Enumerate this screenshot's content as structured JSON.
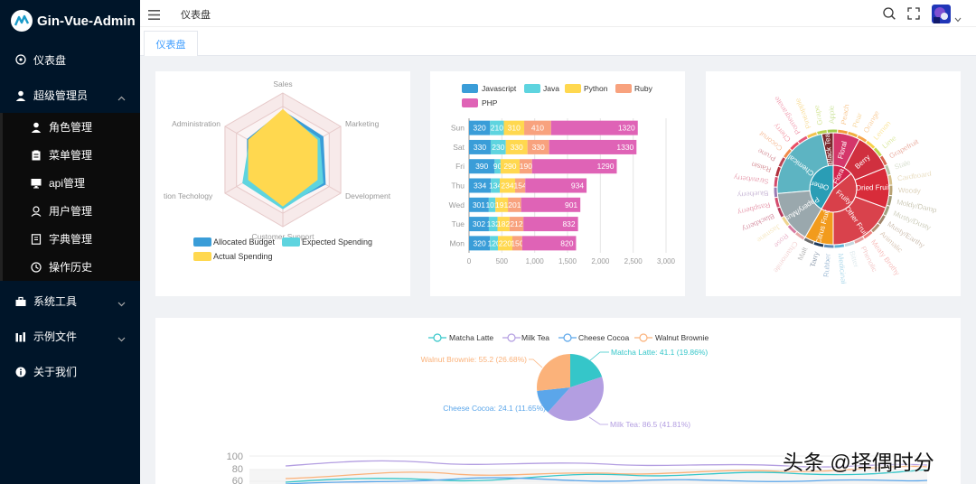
{
  "app": {
    "title": "Gin-Vue-Admin"
  },
  "menu": {
    "dashboard": "仪表盘",
    "admin": "超级管理员",
    "admin_items": [
      "角色管理",
      "菜单管理",
      "api管理",
      "用户管理",
      "字典管理",
      "操作历史"
    ],
    "tools": "系统工具",
    "examples": "示例文件",
    "about": "关于我们"
  },
  "header": {
    "breadcrumb": "仪表盘"
  },
  "tabs": [
    "仪表盘"
  ],
  "watermark": "头条 @择偶时分",
  "colors": {
    "sidebar": "#001529",
    "accent": "#409eff"
  },
  "chart_data": [
    {
      "type": "radar",
      "indicators": [
        "Sales",
        "Marketing",
        "Development",
        "Customer Support",
        "tion Techology",
        "Administration"
      ],
      "series": [
        {
          "name": "Allocated Budget",
          "color": "#3a9dd8"
        },
        {
          "name": "Expected Spending",
          "color": "#5ed4df"
        },
        {
          "name": "Actual Spending",
          "color": "#ffd84f"
        }
      ]
    },
    {
      "type": "bar",
      "orientation": "horizontal-stacked",
      "categories": [
        "Mon",
        "Tue",
        "Wed",
        "Thu",
        "Fri",
        "Sat",
        "Sun"
      ],
      "series": [
        {
          "name": "Javascript",
          "color": "#3a9dd8",
          "values": [
            320,
            302,
            301,
            334,
            390,
            330,
            320
          ]
        },
        {
          "name": "Java",
          "color": "#5ed4df",
          "values": [
            120,
            132,
            101,
            134,
            90,
            230,
            210
          ]
        },
        {
          "name": "Python",
          "color": "#ffd84f",
          "values": [
            220,
            182,
            191,
            234,
            290,
            330,
            310
          ]
        },
        {
          "name": "Ruby",
          "color": "#f8a27e",
          "values": [
            150,
            212,
            201,
            154,
            190,
            330,
            410
          ]
        },
        {
          "name": "PHP",
          "color": "#df63b6",
          "values": [
            820,
            832,
            901,
            934,
            1290,
            1330,
            1320
          ]
        }
      ],
      "xticks": [
        "0",
        "500",
        "1,000",
        "1,500",
        "2,000",
        "2,500",
        "3,000"
      ],
      "xlim": [
        0,
        3000
      ]
    },
    {
      "type": "sunburst",
      "inner": [
        "Other",
        "Flora",
        "Fruity"
      ],
      "middle": [
        "Black Tea",
        "Floral",
        "Chemical",
        "Papery/Musty",
        "Citrus Fruit",
        "Other Fruit",
        "Dried Fruit",
        "Berry"
      ],
      "outer": [
        "Chamomile",
        "Rose",
        "Jasmine",
        "Blackberry",
        "Raspberry",
        "Blueberry",
        "Strawberry",
        "Raisin",
        "Prune",
        "Coconut",
        "Cherry",
        "Pomegranate",
        "Pineapple",
        "Grape",
        "Apple",
        "Peach",
        "Pear",
        "Orange",
        "Lemon",
        "Lime",
        "Grapefruit",
        "Stale",
        "Cardboard",
        "Woody",
        "Moldy/Damp",
        "Musty/Dusty",
        "Musty/Earthy",
        "Animalic",
        "Meaty Brothy",
        "Phenolic",
        "Bitter",
        "Medicinal",
        "Rubber",
        "Tarry",
        "Malt"
      ]
    },
    {
      "type": "pie",
      "title": "",
      "slices": [
        {
          "name": "Matcha Latte",
          "value": 41.1,
          "pct": "19.86%",
          "color": "#35c6c9",
          "label": "Matcha Latte: 41.1 (19.86%)"
        },
        {
          "name": "Milk Tea",
          "value": 86.5,
          "pct": "41.81%",
          "color": "#b39ee1",
          "label": "Milk Tea: 86.5 (41.81%)"
        },
        {
          "name": "Cheese Cocoa",
          "value": 24.1,
          "pct": "11.65%",
          "color": "#5ba6ea",
          "label": "Cheese Cocoa: 24.1 (11.65%)"
        },
        {
          "name": "Walnut Brownie",
          "value": 55.2,
          "pct": "26.68%",
          "color": "#fbb27a",
          "label": "Walnut Brownie: 55.2 (26.68%)"
        }
      ],
      "legend": [
        "Matcha Latte",
        "Milk Tea",
        "Cheese Cocoa",
        "Walnut Brownie"
      ]
    },
    {
      "type": "line",
      "yticks": [
        "100",
        "80",
        "60"
      ],
      "series_colors": [
        "#35c6c9",
        "#b39ee1",
        "#5ba6ea",
        "#fbb27a"
      ]
    }
  ]
}
